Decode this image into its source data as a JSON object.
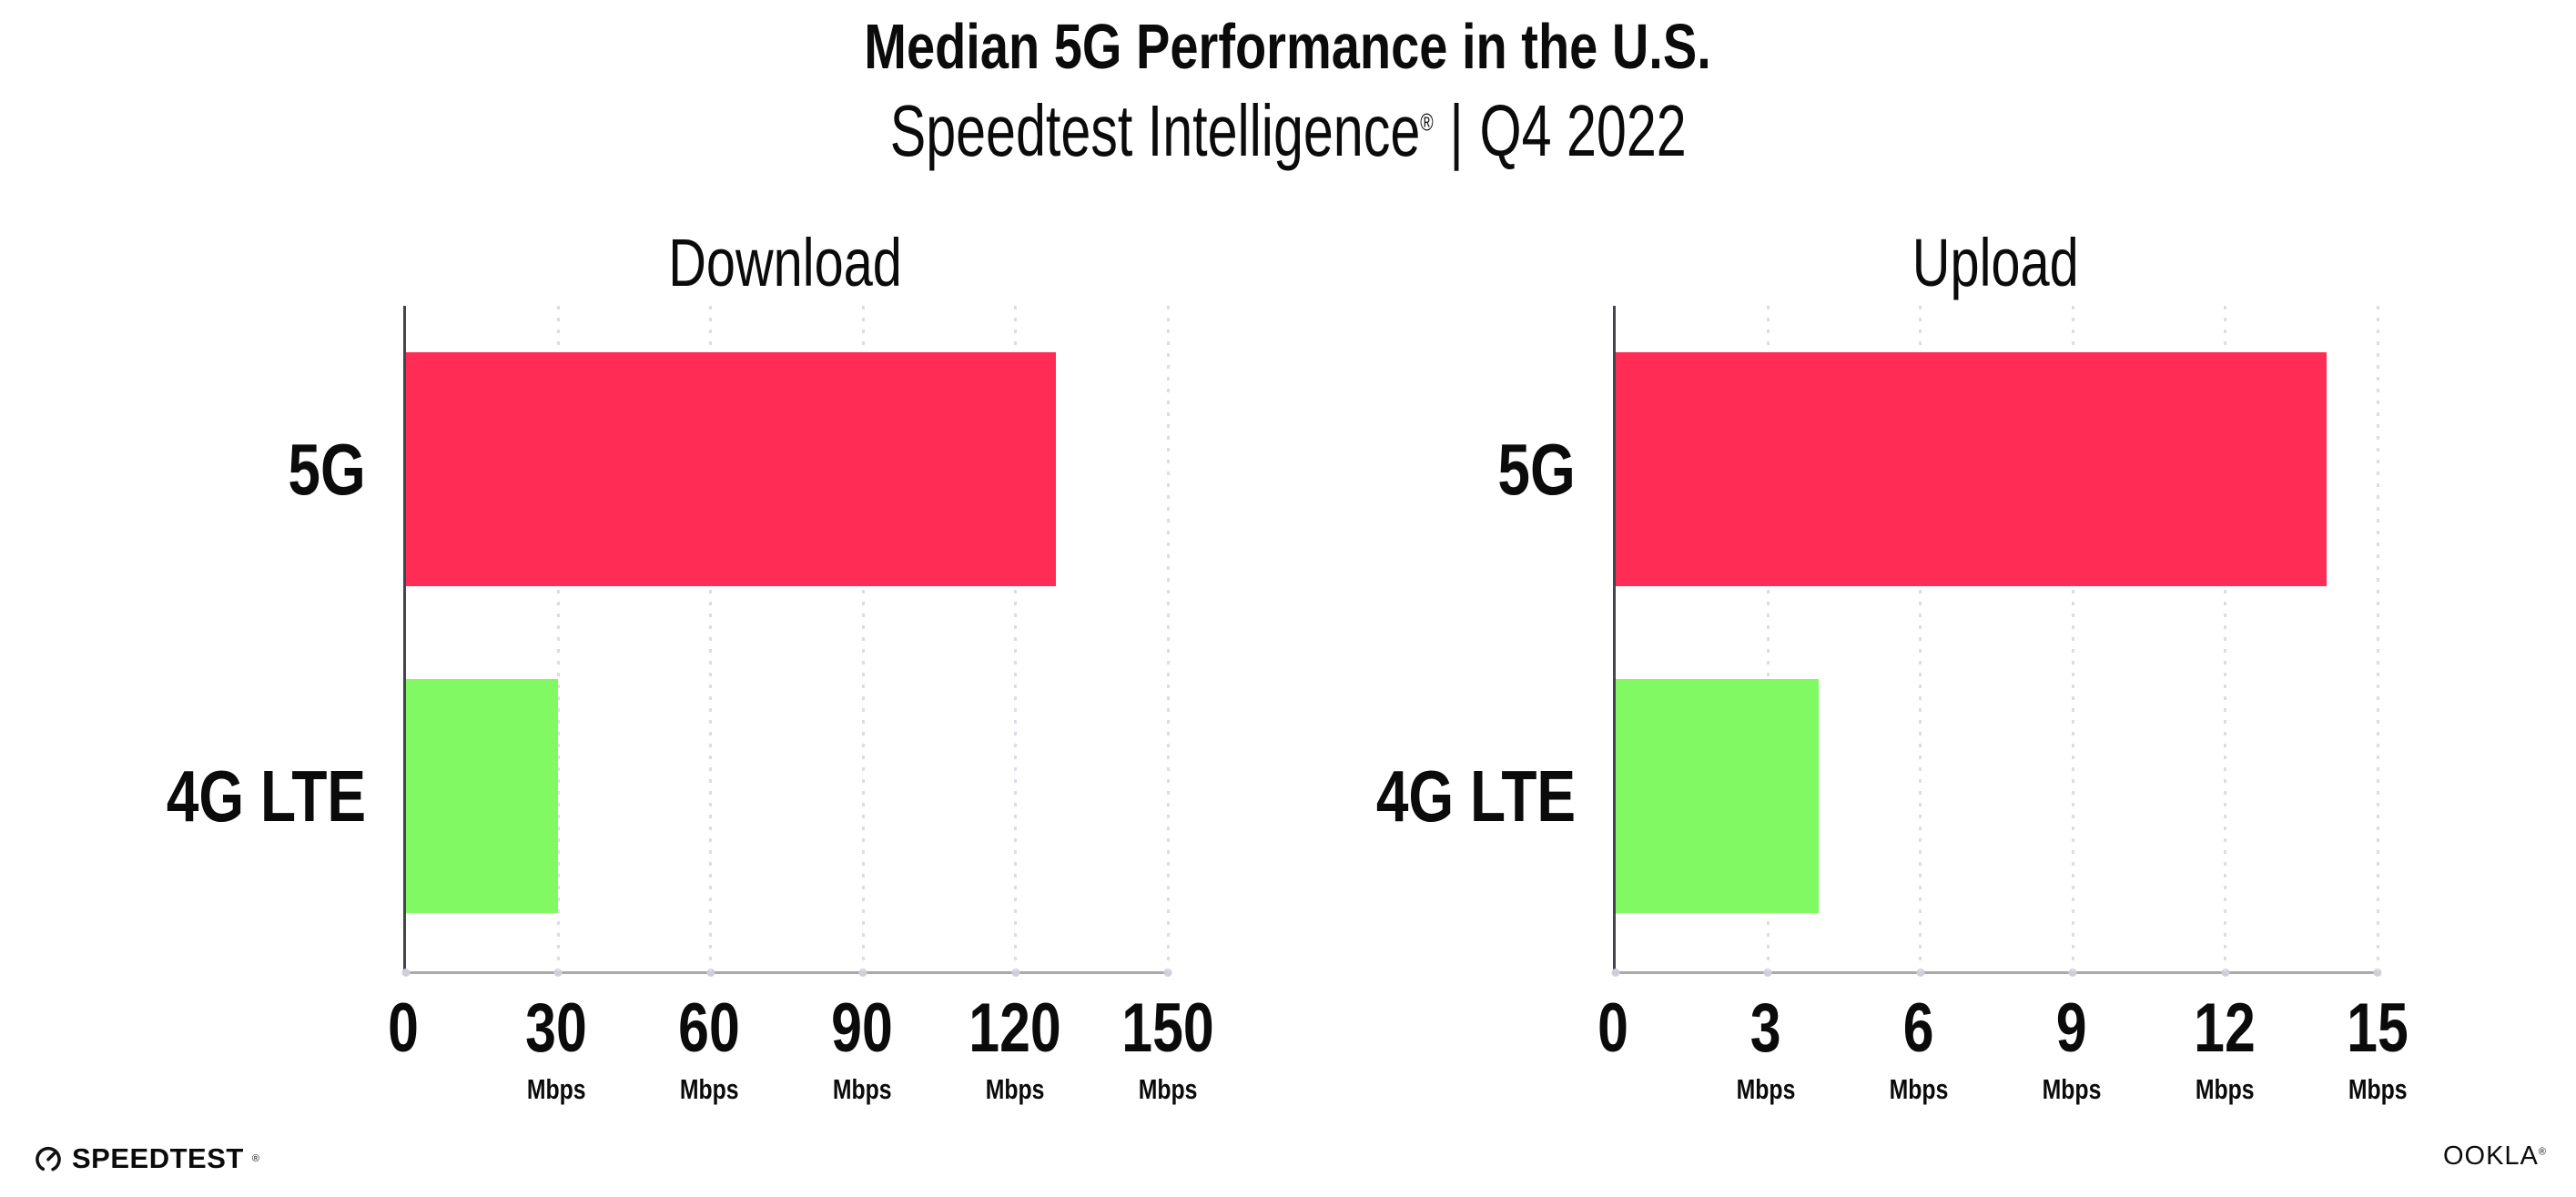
{
  "header": {
    "title": "Median 5G Performance in the U.S.",
    "subtitle": {
      "brand": "Speedtest Intelligence",
      "registered_mark": "®",
      "divider": "|",
      "period": "Q4 2022"
    }
  },
  "chart_data": [
    {
      "type": "bar",
      "orientation": "horizontal",
      "title": "Download",
      "categories": [
        "5G",
        "4G LTE"
      ],
      "values": [
        128,
        30
      ],
      "unit": "Mbps",
      "xlim": [
        0,
        150
      ],
      "xticks": [
        0,
        30,
        60,
        90,
        120,
        150
      ],
      "bar_colors": [
        "#FF2D55",
        "#80F962"
      ],
      "grid": "vertical-dotted",
      "legend": "none"
    },
    {
      "type": "bar",
      "orientation": "horizontal",
      "title": "Upload",
      "categories": [
        "5G",
        "4G LTE"
      ],
      "values": [
        14,
        4
      ],
      "unit": "Mbps",
      "xlim": [
        0,
        15
      ],
      "xticks": [
        0,
        3,
        6,
        9,
        12,
        15
      ],
      "bar_colors": [
        "#FF2D55",
        "#80F962"
      ],
      "grid": "vertical-dotted",
      "legend": "none"
    }
  ],
  "footer": {
    "speedtest_logo_text": "SPEEDTEST",
    "speedtest_trademark": "®",
    "ookla_logo_text": "OOKLA",
    "ookla_trademark": "®"
  },
  "style_colors": {
    "bar_5g": "#FF2D55",
    "bar_4g_lte": "#80F962",
    "axis_spine": "#45454d",
    "axis_baseline": "#a9a9b0",
    "gridline_dots": "#dcdce5",
    "text": "#0b0b0c",
    "background": "#ffffff"
  }
}
